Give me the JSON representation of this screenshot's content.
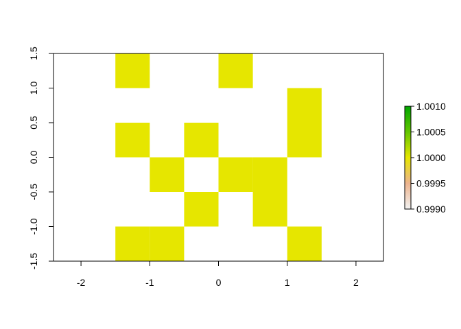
{
  "chart_data": {
    "type": "heatmap",
    "title": "",
    "xlabel": "",
    "ylabel": "",
    "xlim": [
      -2.4,
      2.4
    ],
    "ylim": [
      -1.5,
      1.5
    ],
    "cell_width": 0.5,
    "cell_height": 0.5,
    "x_ticks": [
      -2,
      -1,
      0,
      1,
      2
    ],
    "x_tick_labels": [
      "-2",
      "-1",
      "0",
      "1",
      "2"
    ],
    "y_ticks": [
      -1.5,
      -1.0,
      -0.5,
      0.0,
      0.5,
      1.0,
      1.5
    ],
    "y_tick_labels": [
      "-1.5",
      "-1.0",
      "-0.5",
      "0.0",
      "0.5",
      "1.0",
      "1.5"
    ],
    "cells": [
      {
        "x": -1.25,
        "y": 1.25,
        "value": 1
      },
      {
        "x": 0.25,
        "y": 1.25,
        "value": 1
      },
      {
        "x": 1.25,
        "y": 0.75,
        "value": 1
      },
      {
        "x": -1.25,
        "y": 0.25,
        "value": 1
      },
      {
        "x": -0.25,
        "y": 0.25,
        "value": 1
      },
      {
        "x": 1.25,
        "y": 0.25,
        "value": 1
      },
      {
        "x": -0.75,
        "y": -0.25,
        "value": 1
      },
      {
        "x": 0.25,
        "y": -0.25,
        "value": 1
      },
      {
        "x": 0.75,
        "y": -0.25,
        "value": 1
      },
      {
        "x": -0.25,
        "y": -0.75,
        "value": 1
      },
      {
        "x": 0.75,
        "y": -0.75,
        "value": 1
      },
      {
        "x": -1.25,
        "y": -1.25,
        "value": 1
      },
      {
        "x": -0.75,
        "y": -1.25,
        "value": 1
      },
      {
        "x": 1.25,
        "y": -1.25,
        "value": 1
      }
    ],
    "cell_color": "#E6E600",
    "legend": {
      "placement": "right",
      "min": 0.999,
      "max": 1.001,
      "ticks": [
        0.999,
        0.9995,
        1.0,
        1.0005,
        1.001
      ],
      "tick_labels": [
        "0.9990",
        "0.9995",
        "1.0000",
        "1.0005",
        "1.0010"
      ],
      "gradient_colors": [
        "#F2F2F2",
        "#EDB48E",
        "#E6E600",
        "#63C600",
        "#00A600"
      ]
    }
  }
}
